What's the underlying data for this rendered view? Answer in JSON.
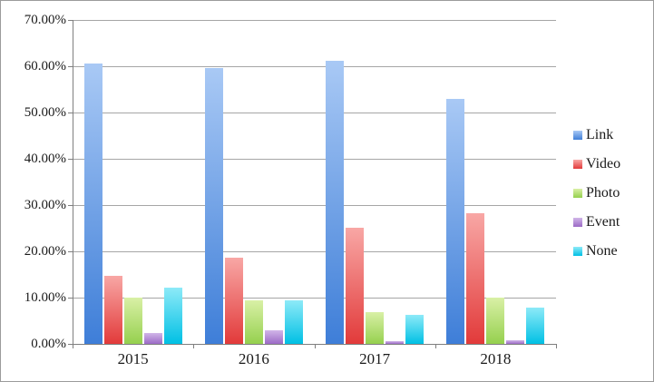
{
  "chart_data": {
    "type": "bar",
    "title": "",
    "categories": [
      "2015",
      "2016",
      "2017",
      "2018"
    ],
    "series": [
      {
        "name": "Link",
        "color": "#4a86dc",
        "gradient_top": "#a9c9f5",
        "gradient_bottom": "#3e7ed8",
        "values": [
          60.6,
          59.7,
          61.2,
          52.9
        ]
      },
      {
        "name": "Video",
        "color": "#e94747",
        "gradient_top": "#f8a7a5",
        "gradient_bottom": "#e23a3a",
        "values": [
          14.8,
          18.7,
          25.1,
          28.2
        ]
      },
      {
        "name": "Photo",
        "color": "#a3d45c",
        "gradient_top": "#d9f0a6",
        "gradient_bottom": "#95d04e",
        "values": [
          10.1,
          9.5,
          6.9,
          10.0
        ]
      },
      {
        "name": "Event",
        "color": "#a678cc",
        "gradient_top": "#d1b6e8",
        "gradient_bottom": "#9c6ac6",
        "values": [
          2.4,
          2.9,
          0.6,
          0.8
        ]
      },
      {
        "name": "None",
        "color": "#18c4e8",
        "gradient_top": "#8deaf8",
        "gradient_bottom": "#00c0e4",
        "values": [
          12.2,
          9.5,
          6.3,
          7.8
        ]
      }
    ],
    "y_axis": {
      "min": 0,
      "max": 70,
      "tick_step": 10,
      "tick_labels": [
        "0.00%",
        "10.00%",
        "20.00%",
        "30.00%",
        "40.00%",
        "50.00%",
        "60.00%",
        "70.00%"
      ],
      "grid": true
    },
    "legend": {
      "position": "right",
      "entries": [
        "Link",
        "Video",
        "Photo",
        "Event",
        "None"
      ]
    },
    "colors": {
      "gridline": "#a6a6a6",
      "axis": "#7f7f7f",
      "text": "#1a1a1a",
      "background": "#ffffff",
      "frame_border": "#9b9b9b"
    }
  }
}
